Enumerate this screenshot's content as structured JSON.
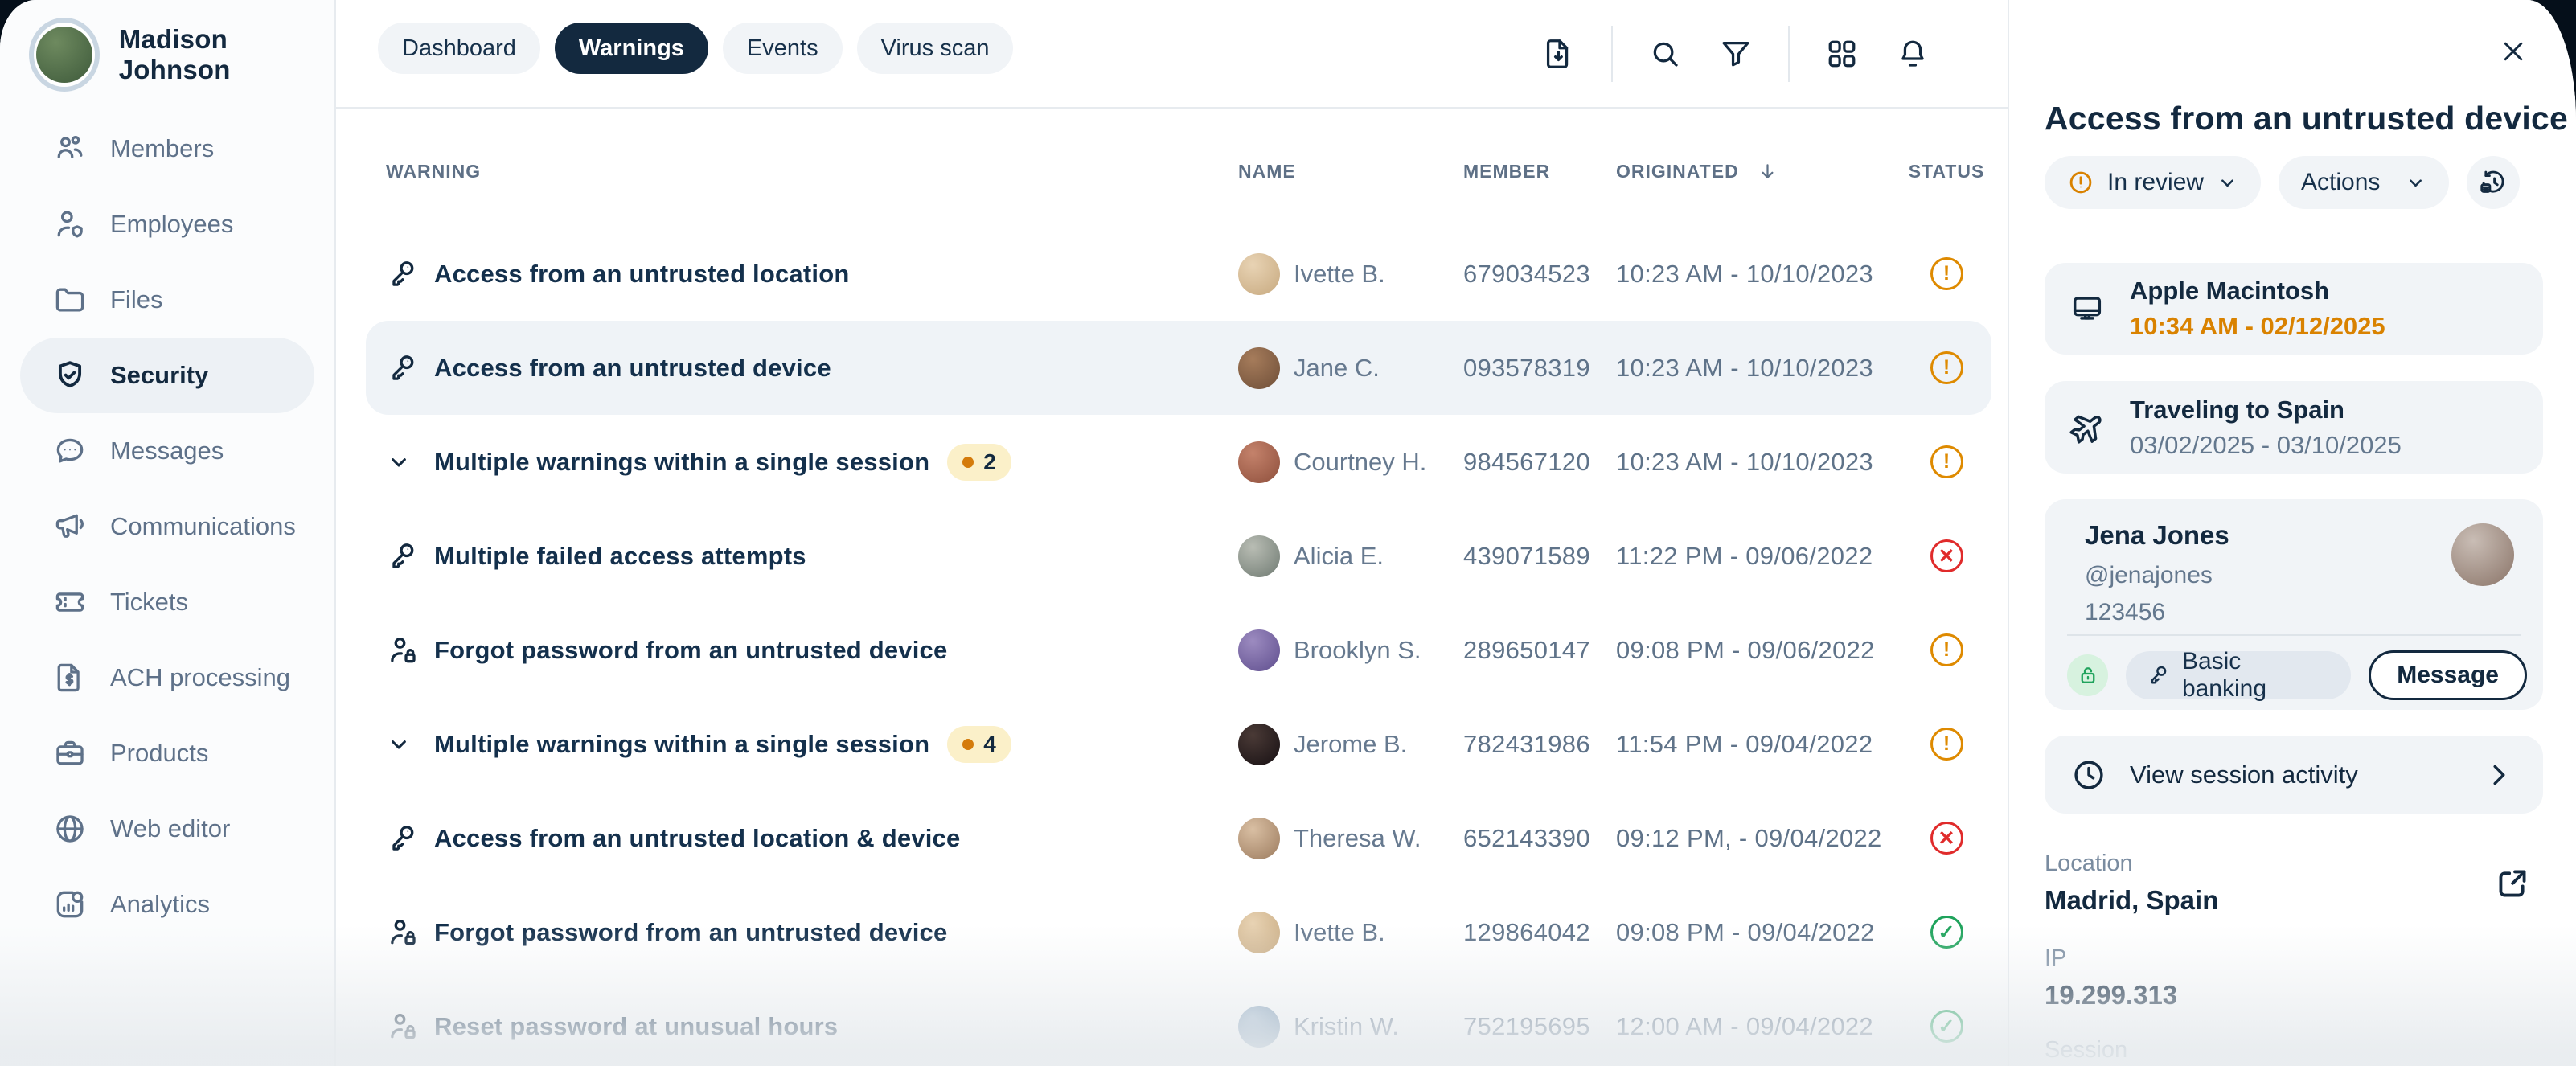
{
  "colors": {
    "navy": "#13293F",
    "text_gray": "#5F7389",
    "accent_orange": "#D98200",
    "status_warning": "#DE8A00",
    "status_error": "#E02B2B",
    "status_success": "#1FA35C",
    "pill_bg": "#F1F4F7",
    "selected_row_bg": "#EFF3F7",
    "badge_bg": "#FBF0C9",
    "badge_dot": "#D47B0B",
    "lock_badge_bg": "#D7F2DF",
    "banking_pill_bg": "#E2E8EF",
    "active_tab_bg": "#13293F"
  },
  "sidebar": {
    "user": {
      "name": "Madison Johnson",
      "avatar_colors": [
        "#6E8A5F",
        "#3E5A3B"
      ]
    },
    "items": [
      {
        "icon": "people",
        "label": "Members",
        "active": false
      },
      {
        "icon": "user-badge",
        "label": "Employees",
        "active": false
      },
      {
        "icon": "folder",
        "label": "Files",
        "active": false
      },
      {
        "icon": "shield-check",
        "label": "Security",
        "active": true
      },
      {
        "icon": "chat",
        "label": "Messages",
        "active": false
      },
      {
        "icon": "megaphone",
        "label": "Communications",
        "active": false
      },
      {
        "icon": "ticket",
        "label": "Tickets",
        "active": false
      },
      {
        "icon": "doc-dollar",
        "label": "ACH processing",
        "active": false
      },
      {
        "icon": "briefcase",
        "label": "Products",
        "active": false
      },
      {
        "icon": "globe",
        "label": "Web editor",
        "active": false
      },
      {
        "icon": "analytics",
        "label": "Analytics",
        "active": false
      }
    ]
  },
  "topbar": {
    "tabs": [
      {
        "label": "Dashboard",
        "active": false
      },
      {
        "label": "Warnings",
        "active": true
      },
      {
        "label": "Events",
        "active": false
      },
      {
        "label": "Virus scan",
        "active": false
      }
    ],
    "toolbar_groups": [
      [
        "doc-download"
      ],
      [
        "search",
        "filter"
      ],
      [
        "grid",
        "bell"
      ]
    ]
  },
  "table": {
    "headers": {
      "warning": "WARNING",
      "name": "NAME",
      "member": "MEMBER",
      "originated": "ORIGINATED",
      "status": "STATUS"
    },
    "sort_column": "originated",
    "statuses": {
      "warning": {
        "glyph": "!",
        "color": "#DE8A00"
      },
      "error": {
        "glyph": "✕",
        "color": "#E02B2B"
      },
      "success": {
        "glyph": "✓",
        "color": "#1FA35C"
      }
    },
    "rows": [
      {
        "icon": "key",
        "warning": "Access from an untrusted location",
        "badge": null,
        "name": "Ivette B.",
        "avatar_colors": [
          "#E8D3B4",
          "#C7A97F"
        ],
        "member": "679034523",
        "originated": "10:23 AM - 10/10/2023",
        "status": "warning",
        "selected": false
      },
      {
        "icon": "key",
        "warning": "Access from an untrusted device",
        "badge": null,
        "name": "Jane C.",
        "avatar_colors": [
          "#A67C5B",
          "#6E4E38"
        ],
        "member": "093578319",
        "originated": "10:23 AM - 10/10/2023",
        "status": "warning",
        "selected": true
      },
      {
        "icon": "chevron",
        "warning": "Multiple warnings within a single session",
        "badge": "2",
        "name": "Courtney H.",
        "avatar_colors": [
          "#C4826B",
          "#8E4F3C"
        ],
        "member": "984567120",
        "originated": "10:23 AM - 10/10/2023",
        "status": "warning",
        "selected": false
      },
      {
        "icon": "key",
        "warning": "Multiple failed access attempts",
        "badge": null,
        "name": "Alicia E.",
        "avatar_colors": [
          "#B9BDB4",
          "#6F7A72"
        ],
        "member": "439071589",
        "originated": "11:22 PM - 09/06/2022",
        "status": "error",
        "selected": false
      },
      {
        "icon": "user-lock",
        "warning": "Forgot password from an untrusted device",
        "badge": null,
        "name": "Brooklyn S.",
        "avatar_colors": [
          "#9C8BC0",
          "#5F4E8E"
        ],
        "member": "289650147",
        "originated": "09:08 PM - 09/06/2022",
        "status": "warning",
        "selected": false
      },
      {
        "icon": "chevron",
        "warning": "Multiple warnings within a single session",
        "badge": "4",
        "name": "Jerome B.",
        "avatar_colors": [
          "#4A3A36",
          "#171013"
        ],
        "member": "782431986",
        "originated": "11:54 PM - 09/04/2022",
        "status": "warning",
        "selected": false
      },
      {
        "icon": "key",
        "warning": "Access from an untrusted location & device",
        "badge": null,
        "name": "Theresa W.",
        "avatar_colors": [
          "#D9BFA3",
          "#9C7B5E"
        ],
        "member": "652143390",
        "originated": "09:12 PM, - 09/04/2022",
        "status": "error",
        "selected": false
      },
      {
        "icon": "user-lock",
        "warning": "Forgot password from an untrusted device",
        "badge": null,
        "name": "Ivette B.",
        "avatar_colors": [
          "#E8D3B4",
          "#C7A97F"
        ],
        "member": "129864042",
        "originated": "09:08 PM - 09/04/2022",
        "status": "success",
        "selected": false
      },
      {
        "icon": "user-lock",
        "warning": "Reset password at unusual hours",
        "badge": null,
        "name": "Kristin W.",
        "avatar_colors": [
          "#9FB6CC",
          "#5F82A3"
        ],
        "member": "752195695",
        "originated": "12:00 AM - 09/04/2022",
        "status": "success",
        "selected": false
      }
    ]
  },
  "panel": {
    "title": "Access from an untrusted device",
    "status_pill": {
      "label": "In review"
    },
    "actions_pill": {
      "label": "Actions"
    },
    "device_card": {
      "title": "Apple Macintosh",
      "time": "10:34 AM - 02/12/2025"
    },
    "travel_card": {
      "title": "Traveling to Spain",
      "dates": "03/02/2025 - 03/10/2025"
    },
    "user_card": {
      "name": "Jena Jones",
      "handle": "@jenajones",
      "number": "123456",
      "avatar_colors": [
        "#C9BDB5",
        "#8A7468"
      ],
      "tag_label": "Basic banking",
      "message_label": "Message"
    },
    "session_card": {
      "label": "View session activity"
    },
    "location": {
      "label": "Location",
      "value": "Madrid, Spain"
    },
    "ip": {
      "label": "IP",
      "value": "19.299.313"
    },
    "session_section": {
      "label": "Session"
    }
  }
}
